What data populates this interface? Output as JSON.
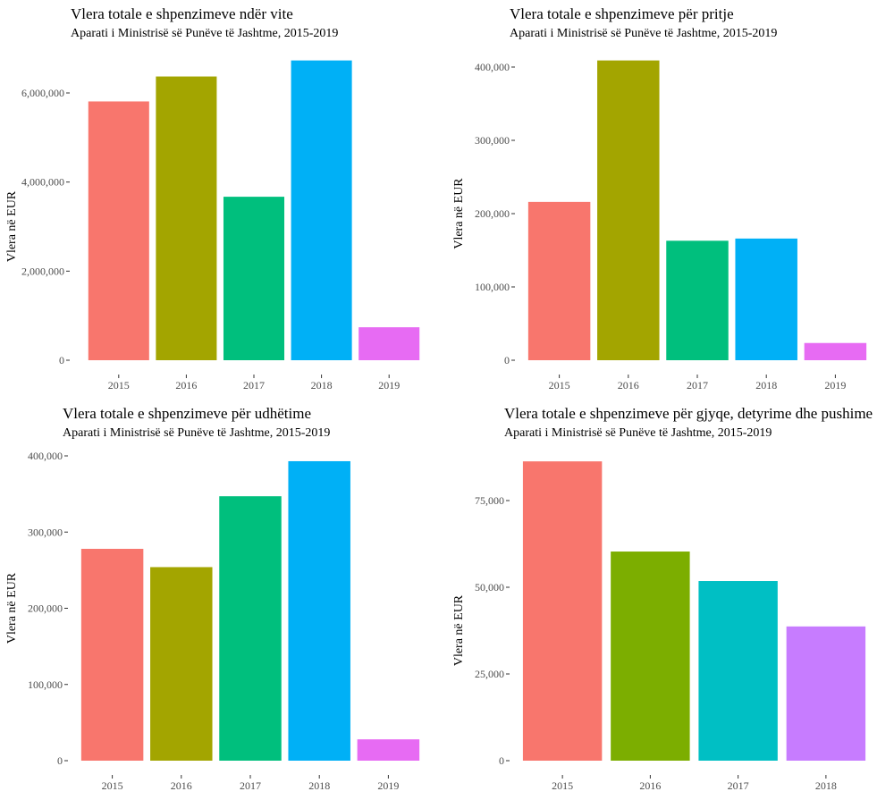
{
  "chart_data": [
    {
      "type": "bar",
      "title": "Vlera totale e shpenzimeve ndër vite",
      "subtitle": "Aparati i Ministrisë së Punëve të Jashtme, 2015-2019",
      "xlabel": "",
      "ylabel": "Vlera në EUR",
      "categories": [
        "2015",
        "2016",
        "2017",
        "2018",
        "2019"
      ],
      "values": [
        5810000,
        6370000,
        3670000,
        6730000,
        740000
      ],
      "colors": [
        "#F8766D",
        "#A3A500",
        "#00BF7D",
        "#00B0F6",
        "#E76BF3"
      ],
      "yticks": [
        0,
        2000000,
        4000000,
        6000000
      ],
      "ytick_labels": [
        "0",
        "2,000,000",
        "4,000,000",
        "6,000,000"
      ],
      "ylim": [
        0,
        6730000
      ],
      "grid": false,
      "legend": "none"
    },
    {
      "type": "bar",
      "title": "Vlera totale e shpenzimeve për pritje",
      "subtitle": "Aparati i Ministrisë së Punëve të Jashtme, 2015-2019",
      "xlabel": "",
      "ylabel": "Vlera në EUR",
      "categories": [
        "2015",
        "2016",
        "2017",
        "2018",
        "2019"
      ],
      "values": [
        216000,
        409000,
        163000,
        166000,
        23500
      ],
      "colors": [
        "#F8766D",
        "#A3A500",
        "#00BF7D",
        "#00B0F6",
        "#E76BF3"
      ],
      "yticks": [
        0,
        100000,
        200000,
        300000,
        400000
      ],
      "ytick_labels": [
        "0",
        "100,000",
        "200,000",
        "300,000",
        "400,000"
      ],
      "ylim": [
        0,
        409000
      ],
      "grid": false,
      "legend": "none"
    },
    {
      "type": "bar",
      "title": "Vlera totale e shpenzimeve për udhëtime",
      "subtitle": "Aparati i Ministrisë së Punëve të Jashtme, 2015-2019",
      "xlabel": "",
      "ylabel": "Vlera në EUR",
      "categories": [
        "2015",
        "2016",
        "2017",
        "2018",
        "2019"
      ],
      "values": [
        278000,
        254000,
        347000,
        393000,
        28000
      ],
      "colors": [
        "#F8766D",
        "#A3A500",
        "#00BF7D",
        "#00B0F6",
        "#E76BF3"
      ],
      "yticks": [
        0,
        100000,
        200000,
        300000,
        400000
      ],
      "ytick_labels": [
        "0",
        "100,000",
        "200,000",
        "300,000",
        "400,000"
      ],
      "ylim": [
        0,
        400000
      ],
      "grid": false,
      "legend": "none"
    },
    {
      "type": "bar",
      "title": "Vlera totale e shpenzimeve për gjyqe, detyrime dhe pushime",
      "subtitle": "Aparati i Ministrisë së Punëve të Jashtme, 2015-2019",
      "xlabel": "",
      "ylabel": "Vlera në EUR",
      "categories": [
        "2015",
        "2016",
        "2017",
        "2018"
      ],
      "values": [
        86300,
        60300,
        51800,
        38700
      ],
      "colors": [
        "#F8766D",
        "#7CAE00",
        "#00BFC4",
        "#C77CFF"
      ],
      "yticks": [
        0,
        25000,
        50000,
        75000
      ],
      "ytick_labels": [
        "0",
        "25,000",
        "50,000",
        "75,000"
      ],
      "ylim": [
        0,
        86300
      ],
      "grid": false,
      "legend": "none"
    }
  ]
}
